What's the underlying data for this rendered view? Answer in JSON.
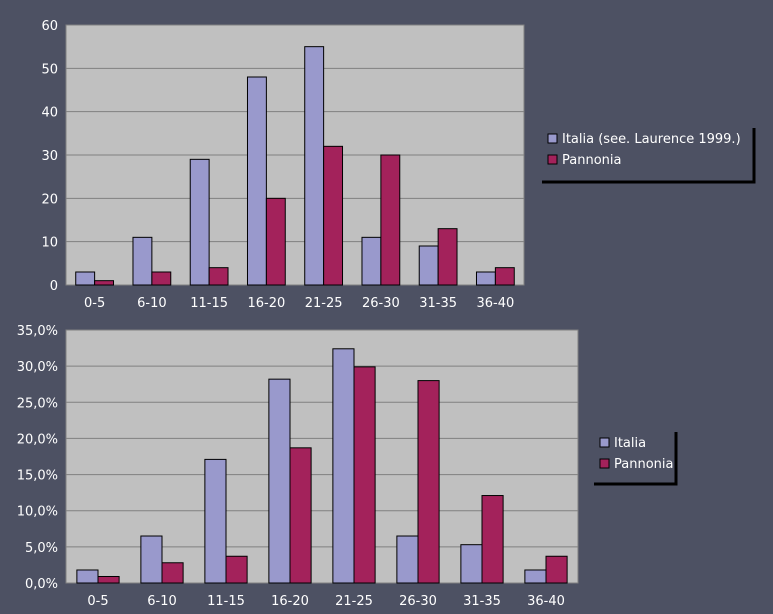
{
  "colors": {
    "background": "#4d5163",
    "plot_area": "#c0c0c0",
    "series_a": "#9999cc",
    "series_b": "#a3225b",
    "axis_text": "#ffffff",
    "legend_frame": "#000000"
  },
  "chart_data": [
    {
      "type": "bar",
      "categories": [
        "0-5",
        "6-10",
        "11-15",
        "16-20",
        "21-25",
        "26-30",
        "31-35",
        "36-40"
      ],
      "series": [
        {
          "name": "Italia (see. Laurence 1999.)",
          "values": [
            3,
            11,
            29,
            48,
            55,
            11,
            9,
            3
          ]
        },
        {
          "name": "Pannonia",
          "values": [
            1,
            3,
            4,
            20,
            32,
            30,
            13,
            4
          ]
        }
      ],
      "ylim": [
        0,
        60
      ],
      "yticks": [
        0,
        10,
        20,
        30,
        40,
        50,
        60
      ],
      "ytick_labels": [
        "0",
        "10",
        "20",
        "30",
        "40",
        "50",
        "60"
      ],
      "grid": true,
      "legend_position": "right"
    },
    {
      "type": "bar",
      "categories": [
        "0-5",
        "6-10",
        "11-15",
        "16-20",
        "21-25",
        "26-30",
        "31-35",
        "36-40"
      ],
      "series": [
        {
          "name": "Italia",
          "values": [
            1.8,
            6.5,
            17.1,
            28.2,
            32.4,
            6.5,
            5.3,
            1.8
          ]
        },
        {
          "name": "Pannonia",
          "values": [
            0.9,
            2.8,
            3.7,
            18.7,
            29.9,
            28.0,
            12.1,
            3.7
          ]
        }
      ],
      "unit": "%",
      "ylim": [
        0,
        35
      ],
      "yticks": [
        0,
        5,
        10,
        15,
        20,
        25,
        30,
        35
      ],
      "ytick_labels": [
        "0,0%",
        "5,0%",
        "10,0%",
        "15,0%",
        "20,0%",
        "25,0%",
        "30,0%",
        "35,0%"
      ],
      "grid": true,
      "legend_position": "right"
    }
  ]
}
